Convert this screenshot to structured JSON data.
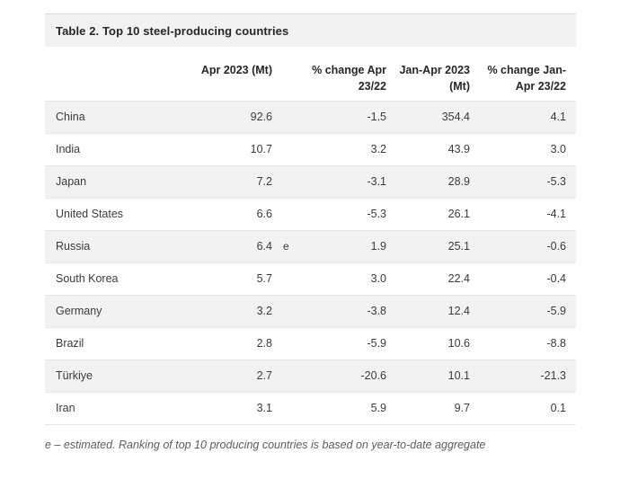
{
  "table": {
    "title": "Table 2. Top 10 steel-producing countries",
    "columns": {
      "country": {
        "line1": "",
        "line2": ""
      },
      "apr": {
        "line1": "Apr 2023 (Mt)",
        "line2": ""
      },
      "note": {
        "line1": "",
        "line2": ""
      },
      "pct_apr": {
        "line1": "% change Apr",
        "line2": "23/22"
      },
      "jan_apr": {
        "line1": "Jan-Apr 2023",
        "line2": "(Mt)"
      },
      "pct_jan_apr": {
        "line1": "% change Jan-",
        "line2": "Apr 23/22"
      }
    },
    "rows": [
      {
        "country": "China",
        "apr": "92.6",
        "note": "",
        "pct_apr": "-1.5",
        "jan_apr": "354.4",
        "pct_jan_apr": "4.1"
      },
      {
        "country": "India",
        "apr": "10.7",
        "note": "",
        "pct_apr": "3.2",
        "jan_apr": "43.9",
        "pct_jan_apr": "3.0"
      },
      {
        "country": "Japan",
        "apr": "7.2",
        "note": "",
        "pct_apr": "-3.1",
        "jan_apr": "28.9",
        "pct_jan_apr": "-5.3"
      },
      {
        "country": "United States",
        "apr": "6.6",
        "note": "",
        "pct_apr": "-5.3",
        "jan_apr": "26.1",
        "pct_jan_apr": "-4.1"
      },
      {
        "country": "Russia",
        "apr": "6.4",
        "note": "e",
        "pct_apr": "1.9",
        "jan_apr": "25.1",
        "pct_jan_apr": "-0.6"
      },
      {
        "country": "South Korea",
        "apr": "5.7",
        "note": "",
        "pct_apr": "3.0",
        "jan_apr": "22.4",
        "pct_jan_apr": "-0.4"
      },
      {
        "country": "Germany",
        "apr": "3.2",
        "note": "",
        "pct_apr": "-3.8",
        "jan_apr": "12.4",
        "pct_jan_apr": "-5.9"
      },
      {
        "country": "Brazil",
        "apr": "2.8",
        "note": "",
        "pct_apr": "-5.9",
        "jan_apr": "10.6",
        "pct_jan_apr": "-8.8"
      },
      {
        "country": "Türkiye",
        "apr": "2.7",
        "note": "",
        "pct_apr": "-20.6",
        "jan_apr": "10.1",
        "pct_jan_apr": "-21.3"
      },
      {
        "country": "Iran",
        "apr": "3.1",
        "note": "",
        "pct_apr": "5.9",
        "jan_apr": "9.7",
        "pct_jan_apr": "0.1"
      }
    ],
    "footnote": "e – estimated. Ranking of top 10 producing countries is based on year-to-date aggregate",
    "colors": {
      "stripe": "#f2f2f2",
      "title_bar_bg": "#f2f2f2",
      "border": "#e6e6e6",
      "text": "#3a3a3a",
      "heading_text": "#262626",
      "footnote_text": "#5c5c5c"
    }
  }
}
